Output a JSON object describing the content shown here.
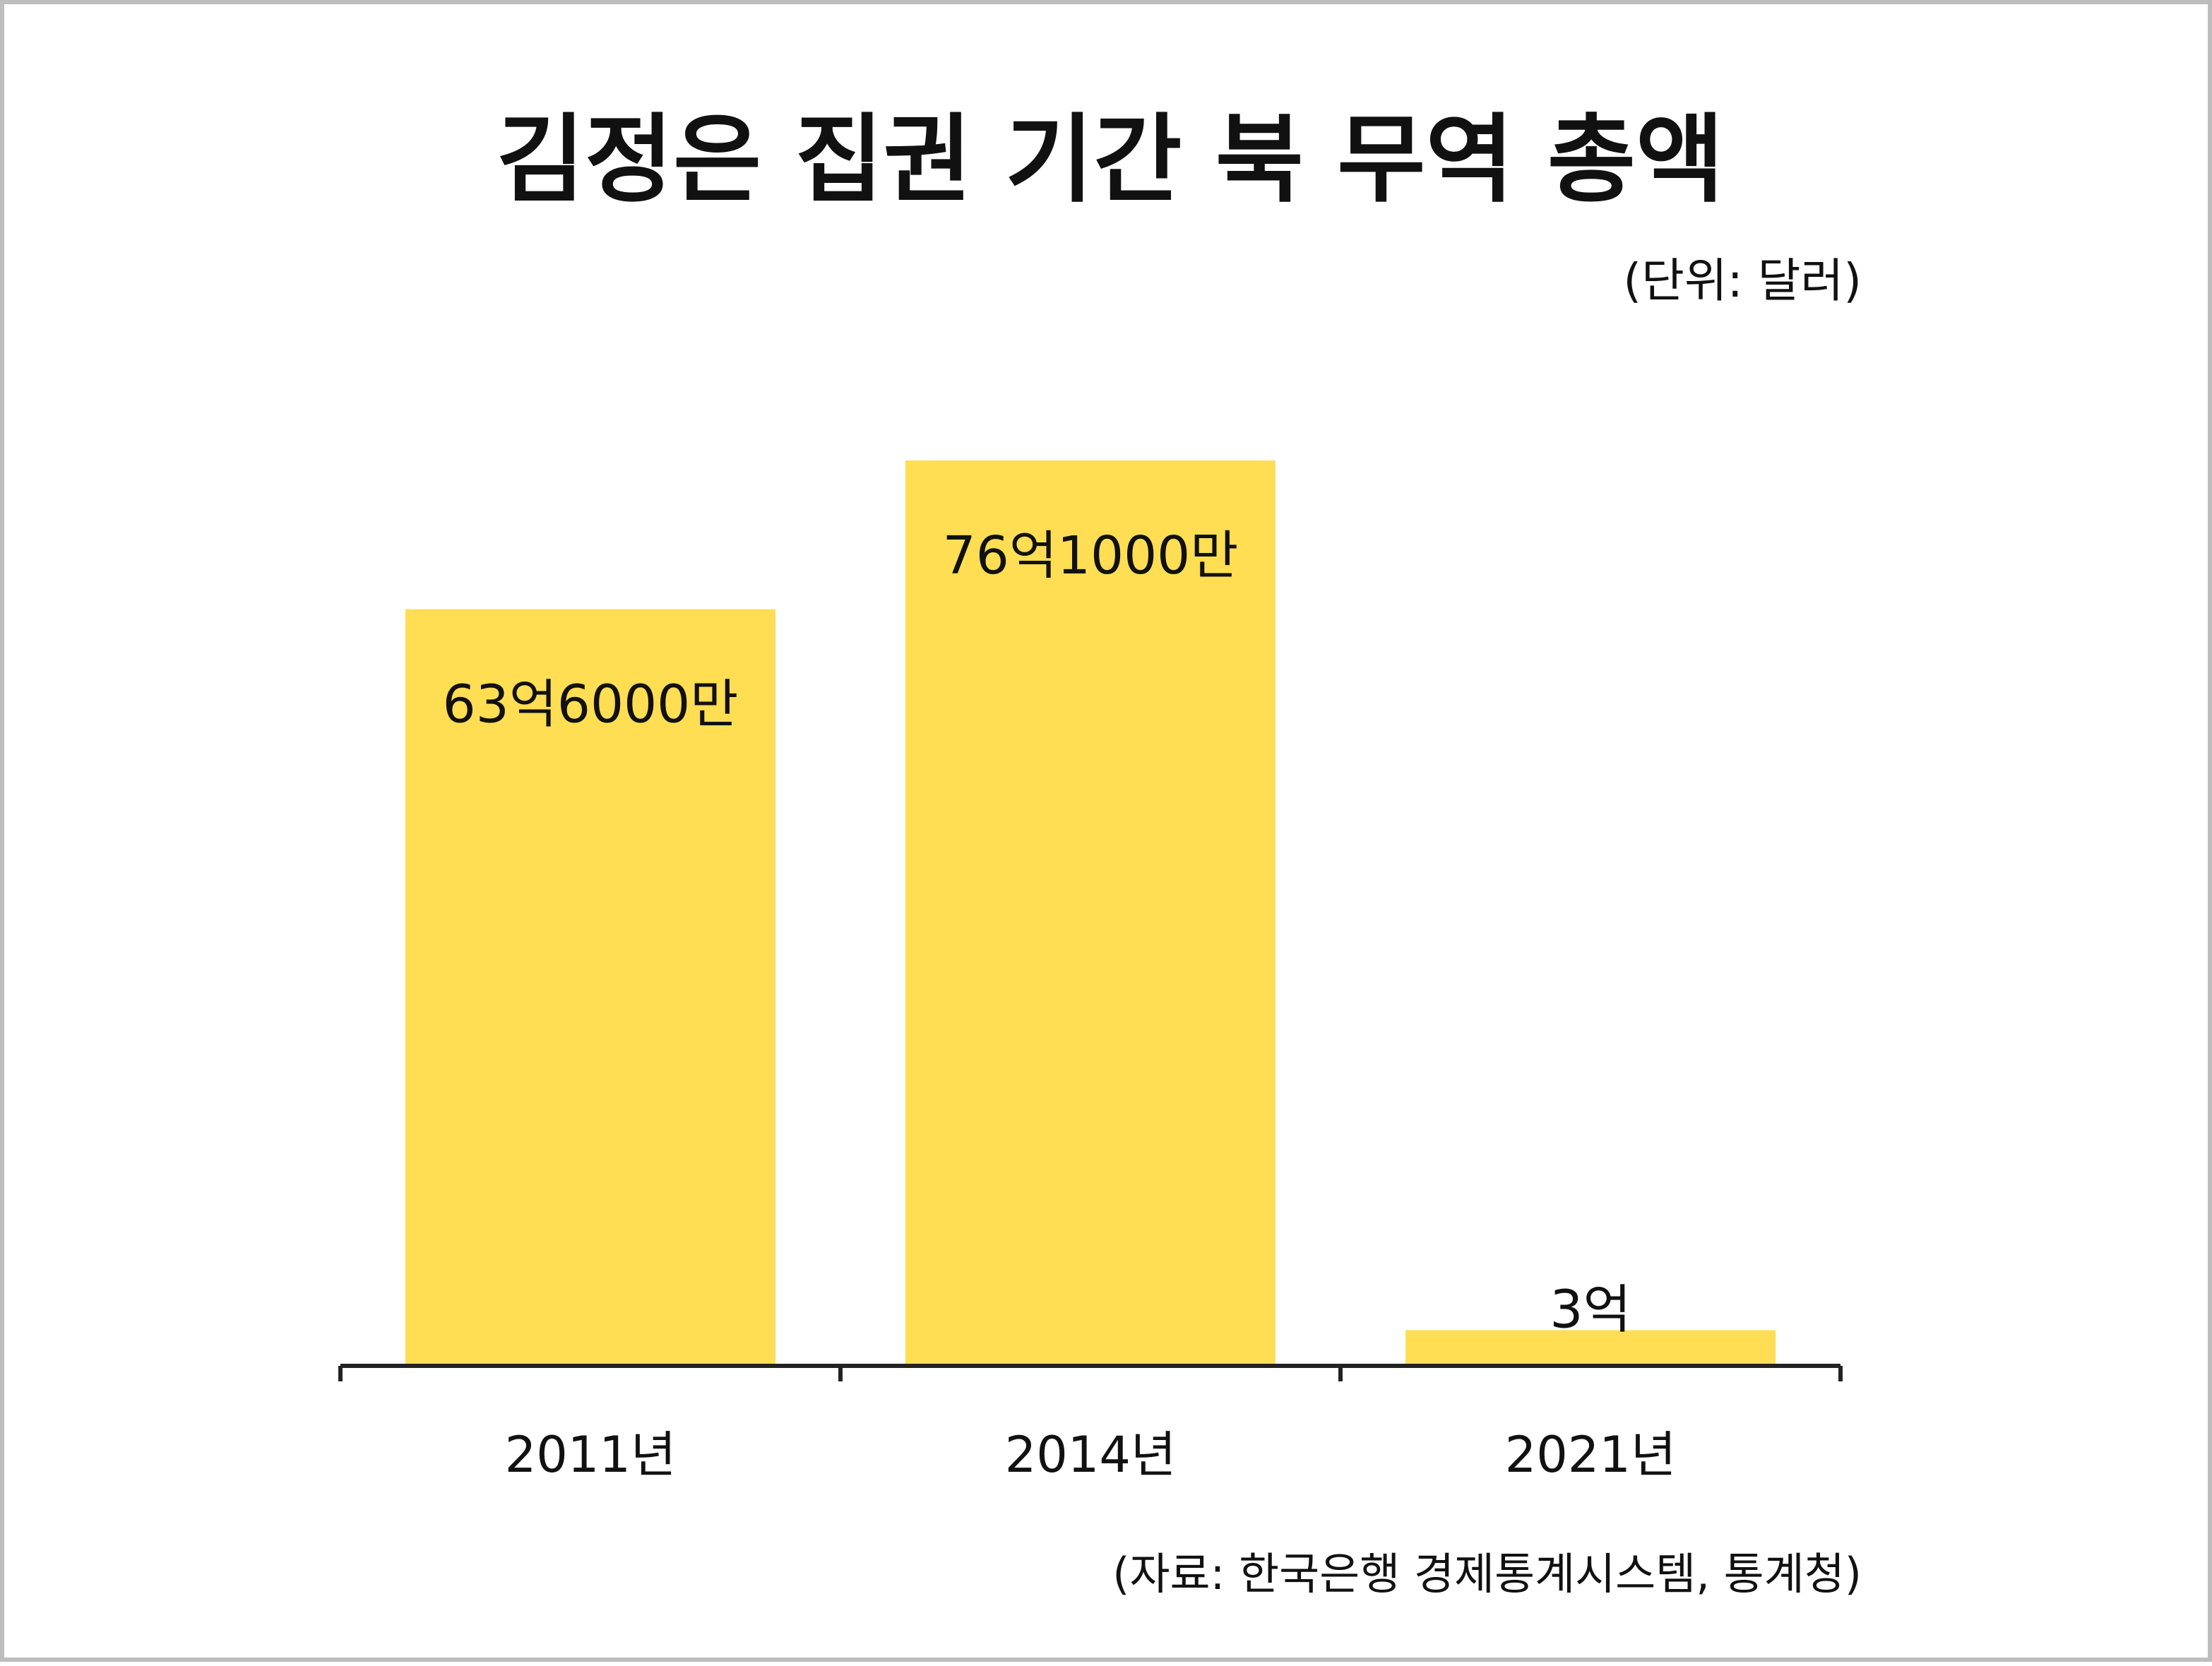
{
  "title": "김정은 집권 기간 북 무역 총액",
  "unit_note": "(단위: 달러)",
  "source_note": "(자료: 한국은행 경제통계시스템, 통계청)",
  "colors": {
    "bar": "#FFDE54",
    "axis": "#222222",
    "text": "#111111"
  },
  "chart_data": {
    "type": "bar",
    "categories": [
      "2011년",
      "2014년",
      "2021년"
    ],
    "values": [
      6360000000,
      7610000000,
      300000000
    ],
    "data_labels": [
      "63억6000만",
      "76억1000만",
      "3억"
    ],
    "title": "김정은 집권 기간 북 무역 총액",
    "xlabel": "",
    "ylabel": "",
    "ylim": [
      0,
      7610000000
    ],
    "grid": false,
    "legend": "none"
  }
}
